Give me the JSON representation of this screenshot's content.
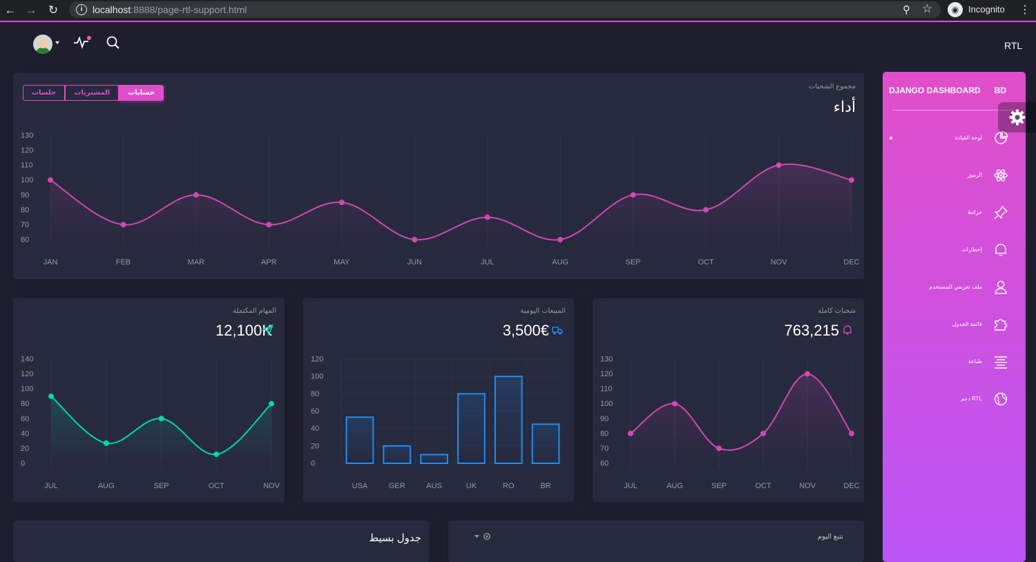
{
  "browser": {
    "url_host": "localhost",
    "url_rest": ":8888/page-rtl-support.html",
    "profile": "Incognito"
  },
  "navbar": {
    "brand": "RTL"
  },
  "performance": {
    "category": "مجموع الشحنات",
    "title": "أداء",
    "tabs": [
      "جلسات",
      "المشتريات",
      "حسابات"
    ],
    "active_tab": "حسابات"
  },
  "completed_tasks": {
    "category": "المهام المكتملة",
    "value": "12,100K"
  },
  "daily_sales": {
    "category": "المبيعات اليومية",
    "value": "3,500€"
  },
  "total_shipments": {
    "category": "شحنات كاملة",
    "value": "763,215"
  },
  "simple_table": {
    "title": "جدول بسيط"
  },
  "tasks": {
    "title": "تتبع اليوم"
  },
  "sidebar": {
    "brand_mini": "BD",
    "brand": "DJANGO DASHBOARD",
    "items": [
      {
        "label": "لوحة القيادة",
        "icon": "pie-chart-icon"
      },
      {
        "label": "الرموز",
        "icon": "atom-icon"
      },
      {
        "label": "خرائط",
        "icon": "pin-icon"
      },
      {
        "label": "إخطارات",
        "icon": "bell-icon"
      },
      {
        "label": "ملف تعريفي للمستخدم",
        "icon": "user-icon"
      },
      {
        "label": "قائمة الجدول",
        "icon": "puzzle-icon"
      },
      {
        "label": "طباعة",
        "icon": "align-center-icon"
      },
      {
        "label": "RTL دعم",
        "icon": "world-icon"
      }
    ]
  },
  "colors": {
    "primary": "#e14eca",
    "info": "#1f8ef1",
    "success": "#00d6b4",
    "card": "#27293d",
    "background": "#1e1e2f"
  },
  "chart_data": [
    {
      "type": "line",
      "title": "أداء",
      "categories": [
        "JAN",
        "FEB",
        "MAR",
        "APR",
        "MAY",
        "JUN",
        "JUL",
        "AUG",
        "SEP",
        "OCT",
        "NOV",
        "DEC"
      ],
      "values": [
        100,
        70,
        90,
        70,
        85,
        60,
        75,
        60,
        90,
        80,
        110,
        100
      ],
      "yticks": [
        60,
        70,
        80,
        90,
        100,
        110,
        120,
        130
      ],
      "ylim": [
        60,
        130
      ],
      "color": "#d048b6"
    },
    {
      "type": "line",
      "title": "12,100K",
      "categories": [
        "JUL",
        "AUG",
        "SEP",
        "OCT",
        "NOV"
      ],
      "values": [
        90,
        27,
        60,
        12,
        80
      ],
      "yticks": [
        0,
        20,
        40,
        60,
        80,
        100,
        120,
        140
      ],
      "ylim": [
        0,
        140
      ],
      "color": "#00d6b4"
    },
    {
      "type": "bar",
      "title": "3,500€",
      "categories": [
        "USA",
        "GER",
        "AUS",
        "UK",
        "RO",
        "BR"
      ],
      "values": [
        53,
        20,
        10,
        80,
        100,
        45
      ],
      "yticks": [
        0,
        20,
        40,
        60,
        80,
        100,
        120
      ],
      "ylim": [
        0,
        120
      ],
      "color": "#1f8ef1"
    },
    {
      "type": "line",
      "title": "763,215",
      "categories": [
        "JUL",
        "AUG",
        "SEP",
        "OCT",
        "NOV",
        "DEC"
      ],
      "values": [
        80,
        100,
        70,
        80,
        120,
        80
      ],
      "yticks": [
        60,
        70,
        80,
        90,
        100,
        110,
        120,
        130
      ],
      "ylim": [
        60,
        130
      ],
      "color": "#d048b6"
    }
  ]
}
